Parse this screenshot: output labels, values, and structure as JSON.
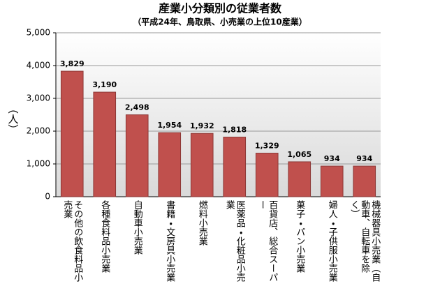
{
  "chart_data": {
    "type": "bar",
    "title": "産業小分類別の従業者数",
    "subtitle": "（平成24年、鳥取県、小売業の上位10産業）",
    "y_label": "（人）",
    "categories": [
      "その他の飲食料品小売業",
      "各種食料品小売業",
      "自動車小売業",
      "書籍・文房具小売業",
      "燃料小売業",
      "医薬品・化粧品小売業",
      "百貨店、総合スーパー",
      "菓子・パン小売業",
      "婦人・子供服小売業",
      "機械器具小売業（自動車、自転車を除く）"
    ],
    "values": [
      3829,
      3190,
      2498,
      1954,
      1932,
      1818,
      1329,
      1065,
      934,
      934
    ],
    "value_labels": [
      "3,829",
      "3,190",
      "2,498",
      "1,954",
      "1,932",
      "1,818",
      "1,329",
      "1,065",
      "934",
      "934"
    ],
    "color": "#c0504d",
    "ylim": [
      0,
      5000
    ],
    "yticks": [
      0,
      {
        "value": 1000,
        "label": "1,000"
      },
      {
        "value": 2000,
        "label": "2,000"
      },
      {
        "value": 3000,
        "label": "3,000"
      },
      {
        "value": 4000,
        "label": "4,000"
      },
      {
        "value": 5000,
        "label": "5,000"
      }
    ],
    "grid": true
  }
}
